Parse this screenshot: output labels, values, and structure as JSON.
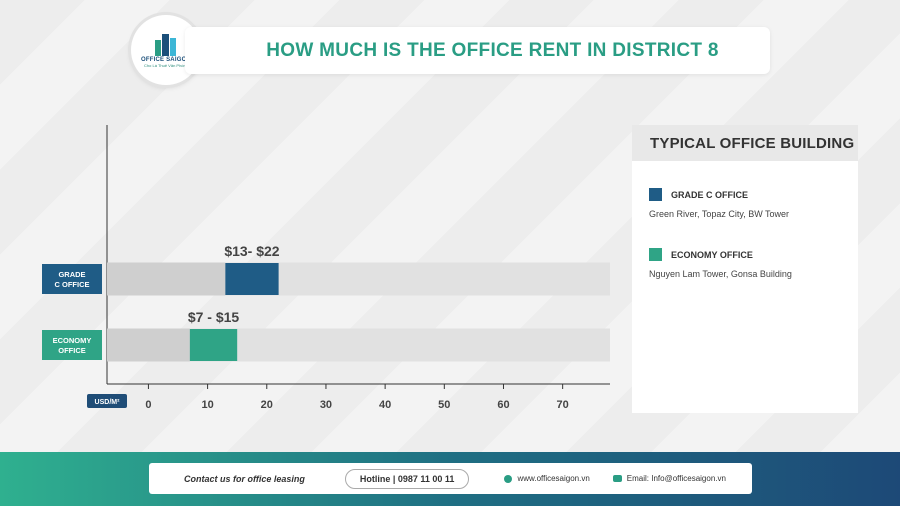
{
  "header": {
    "title": "HOW MUCH IS THE OFFICE RENT IN DISTRICT 8",
    "logo_name": "OFFICE SAIGON",
    "logo_tag": "Cho Lá Thuê Văn Phòng"
  },
  "chart_data": {
    "type": "bar",
    "orientation": "horizontal",
    "categories": [
      "GRADE C OFFICE",
      "ECONOMY OFFICE"
    ],
    "series": [
      {
        "category": "GRADE C OFFICE",
        "low": 13,
        "high": 22,
        "label": "$13- $22",
        "color": "#1f5c86"
      },
      {
        "category": "ECONOMY OFFICE",
        "low": 7,
        "high": 15,
        "label": "$7 - $15",
        "color": "#2fa486"
      }
    ],
    "xlim": [
      -7,
      78
    ],
    "xticks": [
      0,
      10,
      20,
      30,
      40,
      50,
      60,
      70
    ],
    "xunit": "USD/M²",
    "category_labels": [
      [
        "GRADE",
        "C OFFICE"
      ],
      [
        "ECONOMY",
        "OFFICE"
      ]
    ],
    "background_bar_color": "#e1e1e1"
  },
  "legend": {
    "title": "TYPICAL OFFICE BUILDING",
    "items": [
      {
        "label": "GRADE C OFFICE",
        "description": "Green River, Topaz City, BW Tower",
        "color": "#1f5c86"
      },
      {
        "label": "ECONOMY OFFICE",
        "description": "Nguyen Lam Tower, Gonsa Building",
        "color": "#2fa486"
      }
    ]
  },
  "footer": {
    "contact": "Contact us for office leasing",
    "hotline": "Hotline | 0987 11 00 11",
    "website": "www.officesaigon.vn",
    "email": "Email: Info@officesaigon.vn"
  }
}
